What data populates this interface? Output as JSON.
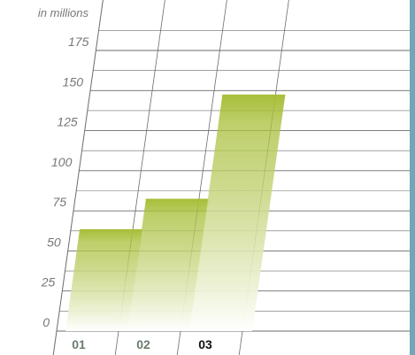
{
  "chart_data": {
    "type": "bar",
    "unit_label": "in millions",
    "categories": [
      "01",
      "02",
      "03"
    ],
    "values": [
      63,
      82,
      147
    ],
    "ylim": [
      0,
      175
    ],
    "yticks": [
      0,
      25,
      50,
      75,
      100,
      125,
      150,
      175
    ],
    "grid": true,
    "highlighted_category": "03"
  },
  "colors": {
    "bar_top": "#a8bf3a",
    "bar_fade": "#ffffff",
    "grid": "#6b6b6b",
    "tick_label": "#777777",
    "category_label": "#6b7b6b",
    "category_label_highlight": "#111111",
    "right_band": "#6fa6b8"
  }
}
